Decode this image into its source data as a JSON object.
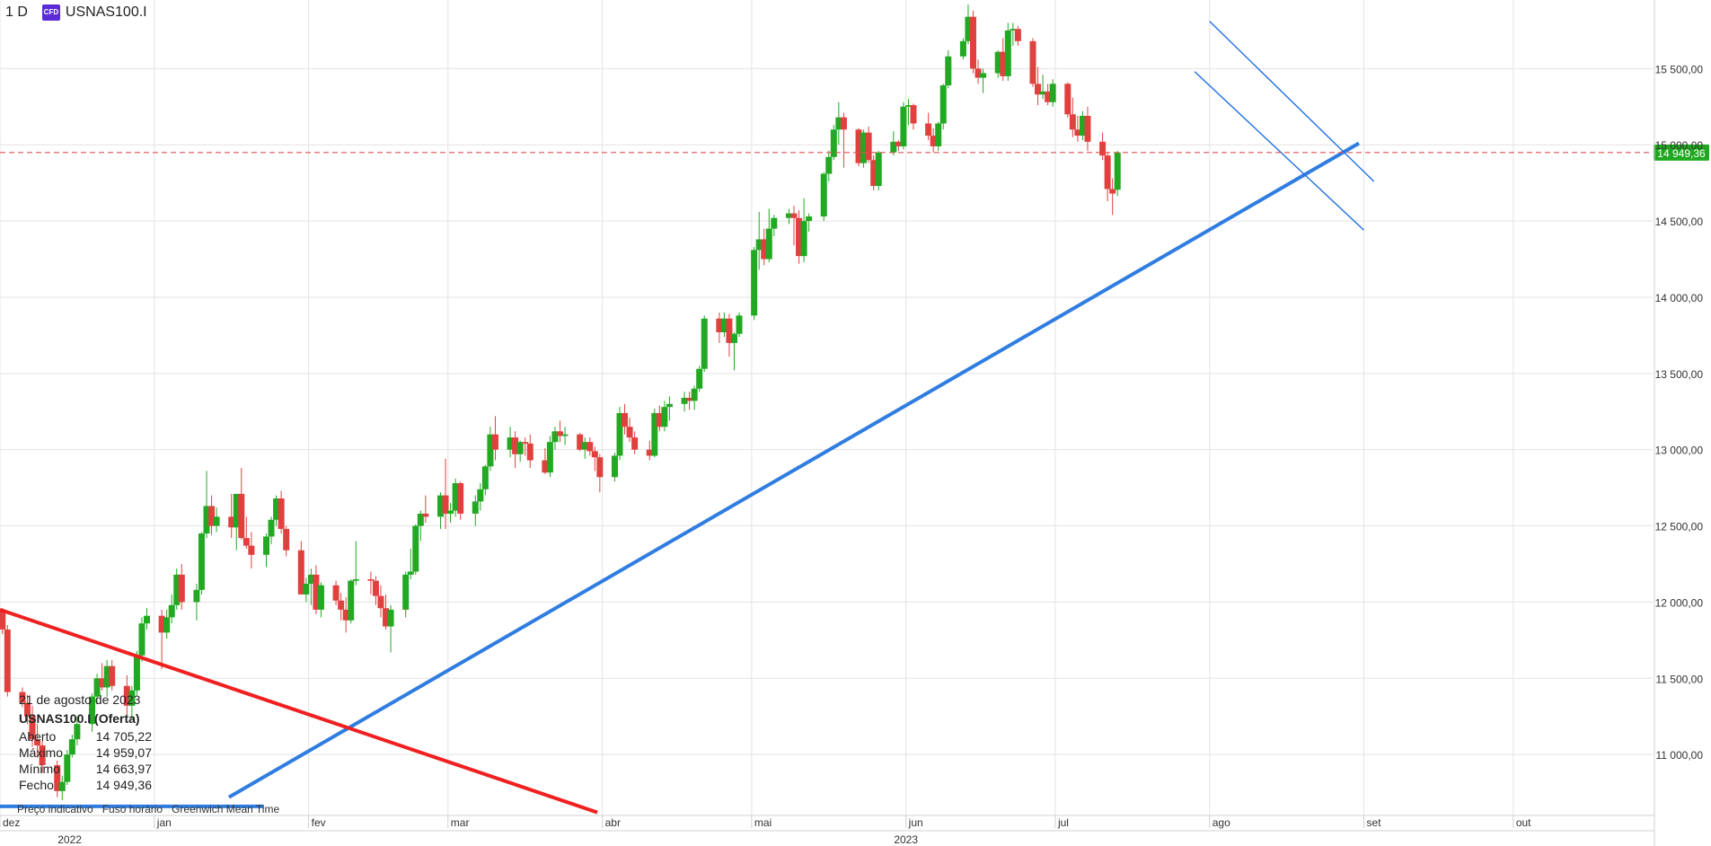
{
  "header": {
    "timeframe": "1 D",
    "badge": "CFD",
    "symbol": "USNAS100.I"
  },
  "info_panel": {
    "date": "21 de agosto de 2023",
    "name": "USNAS100.I (Oferta)",
    "rows": [
      {
        "label": "Aberto",
        "value": "14 705,22"
      },
      {
        "label": "Máximo",
        "value": "14 959,07"
      },
      {
        "label": "Mínimo",
        "value": "14 663,97"
      },
      {
        "label": "Fecho",
        "value": "14 949,36"
      }
    ]
  },
  "footer": {
    "items": [
      "Preço indicativo",
      "Fuso horário",
      "Greenwich Mean Time"
    ]
  },
  "colors": {
    "up": "#22a822",
    "down": "#e0413f",
    "trend_blue": "#2f7de1",
    "channel_blue": "#1f6fe0",
    "trend_red": "#f02020",
    "price_line": "#e05050",
    "price_label_bg": "#1fa81f",
    "grid": "#e3e3e3"
  },
  "chart_data": {
    "type": "candlestick",
    "y_axis": {
      "range": [
        10600,
        15950
      ],
      "ticks": [
        11000,
        11500,
        12000,
        12500,
        13000,
        13500,
        14000,
        14500,
        15000,
        15500
      ],
      "tick_labels": [
        "11 000,00",
        "11 500,00",
        "12 000,00",
        "12 500,00",
        "13 000,00",
        "13 500,00",
        "14 000,00",
        "14 500,00",
        "15 000,00",
        "15 500,00"
      ]
    },
    "x_axis": {
      "range": [
        "2022-12-01",
        "2023-10-29"
      ],
      "month_ticks": [
        {
          "date": "2022-12-01",
          "label": "dez"
        },
        {
          "date": "2023-01-01",
          "label": "jan"
        },
        {
          "date": "2023-02-01",
          "label": "fev"
        },
        {
          "date": "2023-03-01",
          "label": "mar"
        },
        {
          "date": "2023-04-01",
          "label": "abr"
        },
        {
          "date": "2023-05-01",
          "label": "mai"
        },
        {
          "date": "2023-06-01",
          "label": "jun"
        },
        {
          "date": "2023-07-01",
          "label": "jul"
        },
        {
          "date": "2023-08-01",
          "label": "ago"
        },
        {
          "date": "2023-09-01",
          "label": "set"
        },
        {
          "date": "2023-10-01",
          "label": "out"
        }
      ],
      "year_labels": [
        {
          "date": "2022-12-15",
          "label": "2022"
        },
        {
          "date": "2023-06-01",
          "label": "2023"
        }
      ]
    },
    "current_price": {
      "value": 14949.36,
      "label": "14 949,36"
    },
    "candles": [
      [
        11940,
        11960,
        11790,
        11820
      ],
      [
        11820,
        11850,
        11380,
        11410
      ],
      [
        11410,
        11440,
        11310,
        11340
      ],
      [
        11340,
        11390,
        11200,
        11250
      ],
      [
        11250,
        11320,
        11050,
        11100
      ],
      [
        11100,
        11200,
        10980,
        11060
      ],
      [
        11060,
        11090,
        10880,
        10930
      ],
      [
        10930,
        10960,
        10720,
        10760
      ],
      [
        10760,
        10860,
        10700,
        10820
      ],
      [
        10820,
        11030,
        10800,
        11000
      ],
      [
        11000,
        11130,
        10980,
        11100
      ],
      [
        11100,
        11250,
        11060,
        11200
      ],
      [
        11200,
        11400,
        11150,
        11380
      ],
      [
        11380,
        11530,
        11330,
        11500
      ],
      [
        11500,
        11600,
        11420,
        11440
      ],
      [
        11440,
        11620,
        11380,
        11580
      ],
      [
        11580,
        11620,
        11420,
        11450
      ],
      [
        11450,
        11520,
        11260,
        11320
      ],
      [
        11320,
        11450,
        11230,
        11420
      ],
      [
        11420,
        11680,
        11390,
        11650
      ],
      [
        11650,
        11900,
        11610,
        11860
      ],
      [
        11860,
        11960,
        11820,
        11910
      ],
      [
        11910,
        11950,
        11560,
        11800
      ],
      [
        11800,
        11950,
        11760,
        11900
      ],
      [
        11900,
        12050,
        11860,
        11980
      ],
      [
        11980,
        12220,
        11950,
        12180
      ],
      [
        12180,
        12250,
        11950,
        12000
      ],
      [
        12000,
        12120,
        11880,
        12080
      ],
      [
        12080,
        12460,
        12050,
        12450
      ],
      [
        12450,
        12860,
        12420,
        12630
      ],
      [
        12630,
        12700,
        12440,
        12500
      ],
      [
        12500,
        12620,
        12460,
        12560
      ],
      [
        12560,
        12710,
        12420,
        12490
      ],
      [
        12490,
        12700,
        12340,
        12710
      ],
      [
        12710,
        12880,
        12410,
        12420
      ],
      [
        12420,
        12560,
        12350,
        12370
      ],
      [
        12370,
        12460,
        12220,
        12310
      ],
      [
        12310,
        12450,
        12230,
        12430
      ],
      [
        12430,
        12560,
        12380,
        12540
      ],
      [
        12540,
        12700,
        12500,
        12680
      ],
      [
        12680,
        12730,
        12450,
        12480
      ],
      [
        12480,
        12500,
        12300,
        12340
      ],
      [
        12340,
        12400,
        12050,
        12050
      ],
      [
        12050,
        12160,
        12000,
        12120
      ],
      [
        12120,
        12220,
        11980,
        12180
      ],
      [
        12180,
        12240,
        11920,
        11950
      ],
      [
        11950,
        12130,
        11900,
        12110
      ],
      [
        12110,
        12140,
        11980,
        12010
      ],
      [
        12010,
        12060,
        11880,
        11950
      ],
      [
        11950,
        12030,
        11800,
        11880
      ],
      [
        11880,
        12150,
        11860,
        12140
      ],
      [
        12140,
        12400,
        12110,
        12150
      ],
      [
        12150,
        12200,
        12050,
        12140
      ],
      [
        12140,
        12170,
        11980,
        12040
      ],
      [
        12040,
        12110,
        11900,
        11960
      ],
      [
        11960,
        12050,
        11820,
        11840
      ],
      [
        11840,
        11980,
        11670,
        11950
      ],
      [
        11950,
        12200,
        11900,
        12180
      ],
      [
        12180,
        12350,
        12150,
        12200
      ],
      [
        12200,
        12510,
        12180,
        12500
      ],
      [
        12500,
        12600,
        12400,
        12580
      ],
      [
        12580,
        12700,
        12520,
        12560
      ],
      [
        12560,
        12720,
        12480,
        12700
      ],
      [
        12700,
        12940,
        12480,
        12580
      ],
      [
        12580,
        12650,
        12520,
        12600
      ],
      [
        12600,
        12810,
        12560,
        12780
      ],
      [
        12780,
        12790,
        12540,
        12580
      ],
      [
        12580,
        12700,
        12500,
        12660
      ],
      [
        12660,
        12780,
        12600,
        12740
      ],
      [
        12740,
        12900,
        12700,
        12890
      ],
      [
        12890,
        13150,
        12860,
        13100
      ],
      [
        13100,
        13220,
        12930,
        13000
      ],
      [
        13000,
        13150,
        12950,
        13080
      ],
      [
        13080,
        13120,
        12880,
        12970
      ],
      [
        12970,
        13060,
        12920,
        13050
      ],
      [
        13050,
        13080,
        12960,
        13040
      ],
      [
        13040,
        13100,
        12880,
        12930
      ],
      [
        12930,
        13010,
        12840,
        12850
      ],
      [
        12850,
        13090,
        12820,
        13050
      ],
      [
        13050,
        13150,
        13000,
        13120
      ],
      [
        13120,
        13190,
        13050,
        13090
      ],
      [
        13090,
        13150,
        13030,
        13100
      ],
      [
        13100,
        13110,
        12990,
        13000
      ],
      [
        13000,
        13080,
        12940,
        13050
      ],
      [
        13050,
        13080,
        12960,
        12990
      ],
      [
        12990,
        13020,
        12860,
        12950
      ],
      [
        12950,
        12970,
        12720,
        12820
      ],
      [
        12820,
        12980,
        12790,
        12960
      ],
      [
        12960,
        13280,
        12930,
        13240
      ],
      [
        13240,
        13300,
        13100,
        13150
      ],
      [
        13150,
        13210,
        13050,
        13080
      ],
      [
        13080,
        13120,
        12970,
        13000
      ],
      [
        13000,
        13060,
        12930,
        12960
      ],
      [
        12960,
        13270,
        12950,
        13240
      ],
      [
        13240,
        13290,
        13120,
        13150
      ],
      [
        13150,
        13320,
        13120,
        13280
      ],
      [
        13280,
        13350,
        13190,
        13300
      ],
      [
        13300,
        13380,
        13250,
        13340
      ],
      [
        13340,
        13380,
        13260,
        13320
      ],
      [
        13320,
        13420,
        13260,
        13400
      ],
      [
        13400,
        13550,
        13380,
        13530
      ],
      [
        13530,
        13880,
        13510,
        13860
      ],
      [
        13860,
        13900,
        13700,
        13770
      ],
      [
        13770,
        13900,
        13740,
        13860
      ],
      [
        13860,
        13890,
        13610,
        13700
      ],
      [
        13700,
        13770,
        13520,
        13760
      ],
      [
        13760,
        13900,
        13740,
        13880
      ],
      [
        13880,
        14330,
        13850,
        14310
      ],
      [
        14310,
        14560,
        14180,
        14380
      ],
      [
        14380,
        14450,
        14210,
        14250
      ],
      [
        14250,
        14580,
        14230,
        14450
      ],
      [
        14450,
        14540,
        14400,
        14520
      ],
      [
        14520,
        14580,
        14480,
        14550
      ],
      [
        14550,
        14600,
        14340,
        14520
      ],
      [
        14520,
        14570,
        14220,
        14270
      ],
      [
        14270,
        14650,
        14230,
        14500
      ],
      [
        14500,
        14550,
        14430,
        14530
      ],
      [
        14530,
        14820,
        14500,
        14810
      ],
      [
        14810,
        14960,
        14760,
        14920
      ],
      [
        14920,
        15130,
        14900,
        15100
      ],
      [
        15100,
        15280,
        15000,
        15180
      ],
      [
        15180,
        15210,
        14850,
        15100
      ],
      [
        15100,
        15110,
        14860,
        14880
      ],
      [
        14880,
        15100,
        14850,
        15080
      ],
      [
        15080,
        15120,
        14880,
        14900
      ],
      [
        14900,
        14930,
        14700,
        14730
      ],
      [
        14730,
        14960,
        14700,
        14950
      ],
      [
        14950,
        15090,
        14930,
        15020
      ],
      [
        15020,
        15030,
        14960,
        14990
      ],
      [
        14990,
        15280,
        14970,
        15250
      ],
      [
        15250,
        15300,
        15130,
        15260
      ],
      [
        15260,
        15270,
        15100,
        15140
      ],
      [
        15140,
        15210,
        15030,
        15060
      ],
      [
        15060,
        15110,
        14950,
        14990
      ],
      [
        14990,
        15150,
        14960,
        15140
      ],
      [
        15140,
        15400,
        15100,
        15390
      ],
      [
        15390,
        15620,
        15370,
        15580
      ],
      [
        15580,
        15700,
        15560,
        15680
      ],
      [
        15680,
        15920,
        15660,
        15840
      ],
      [
        15840,
        15880,
        15470,
        15500
      ],
      [
        15500,
        15560,
        15400,
        15440
      ],
      [
        15440,
        15500,
        15340,
        15470
      ],
      [
        15470,
        15620,
        15440,
        15610
      ],
      [
        15610,
        15700,
        15420,
        15450
      ],
      [
        15450,
        15800,
        15420,
        15750
      ],
      [
        15750,
        15800,
        15650,
        15760
      ],
      [
        15760,
        15780,
        15650,
        15680
      ],
      [
        15680,
        15700,
        15380,
        15400
      ],
      [
        15400,
        15510,
        15260,
        15330
      ],
      [
        15330,
        15460,
        15300,
        15350
      ],
      [
        15350,
        15400,
        15260,
        15280
      ],
      [
        15280,
        15430,
        15250,
        15400
      ],
      [
        15400,
        15410,
        15180,
        15200
      ],
      [
        15200,
        15310,
        15050,
        15100
      ],
      [
        15100,
        15190,
        15020,
        15060
      ],
      [
        15060,
        15220,
        15030,
        15190
      ],
      [
        15190,
        15250,
        14960,
        15020
      ],
      [
        15020,
        15080,
        14900,
        14930
      ],
      [
        14930,
        14950,
        14630,
        14710
      ],
      [
        14710,
        14780,
        14540,
        14680
      ],
      [
        14705.22,
        14959.07,
        14663.97,
        14949.36
      ]
    ],
    "trendlines": [
      {
        "color": "trend_blue",
        "width": 4,
        "from": {
          "date": "2022-12-01",
          "value": 10660
        },
        "to": {
          "date": "2023-01-23",
          "value": 10660
        }
      },
      {
        "color": "trend_blue",
        "width": 4,
        "from": {
          "date": "2023-01-16",
          "value": 10720
        },
        "to": {
          "date": "2023-08-31",
          "value": 15010
        }
      },
      {
        "color": "trend_red",
        "width": 4,
        "from": {
          "date": "2022-12-01",
          "value": 11950
        },
        "to": {
          "date": "2023-03-31",
          "value": 10620
        }
      },
      {
        "color": "channel_blue",
        "width": 1.4,
        "from": {
          "date": "2023-08-01",
          "value": 15810
        },
        "to": {
          "date": "2023-09-03",
          "value": 14760
        }
      },
      {
        "color": "channel_blue",
        "width": 1.4,
        "from": {
          "date": "2023-07-29",
          "value": 15480
        },
        "to": {
          "date": "2023-09-01",
          "value": 14440
        }
      }
    ]
  }
}
